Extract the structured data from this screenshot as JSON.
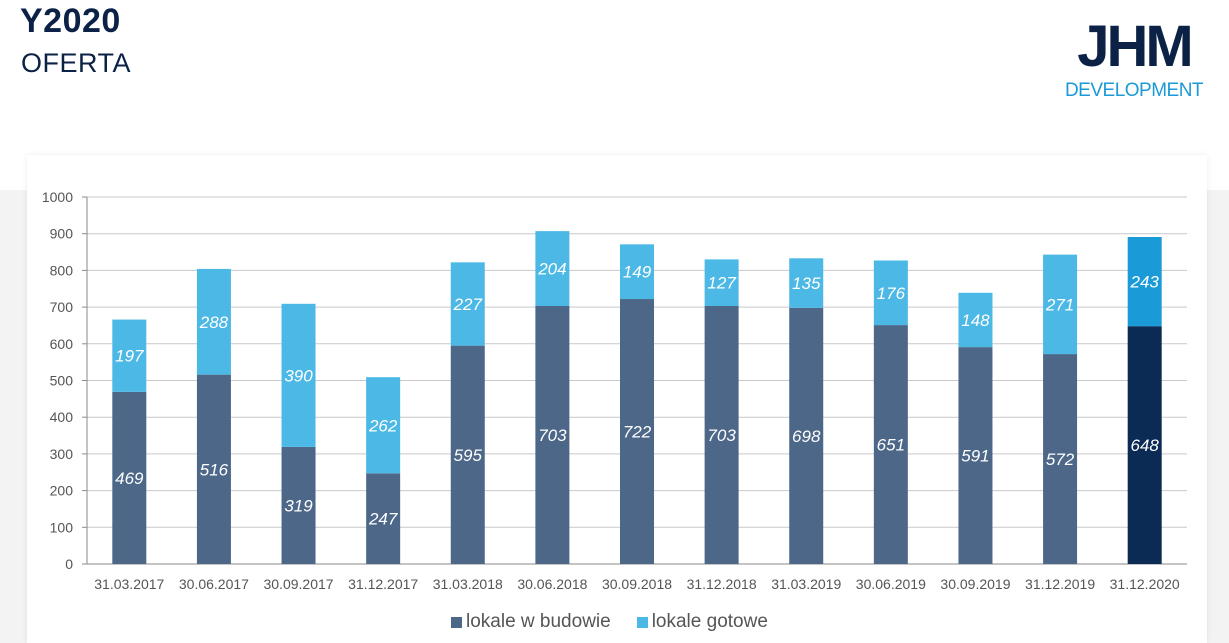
{
  "header": {
    "title": "Y2020",
    "subtitle": "OFERTA"
  },
  "logo": {
    "main": "JHM",
    "sub": "DEVELOPMENT"
  },
  "colors": {
    "in_construction": "#4d6789",
    "ready": "#4cb8e6",
    "highlight_in_construction": "#0b2a54",
    "highlight_ready": "#1a9bd8",
    "brand_dark": "#0b2145",
    "brand_light": "#1b9ad6"
  },
  "chart_data": {
    "type": "bar",
    "stacked": true,
    "title": "",
    "xlabel": "",
    "ylabel": "",
    "ylim": [
      0,
      1000
    ],
    "yticks": [
      0,
      100,
      200,
      300,
      400,
      500,
      600,
      700,
      800,
      900,
      1000
    ],
    "grid": true,
    "legend_position": "bottom",
    "categories": [
      "31.03.2017",
      "30.06.2017",
      "30.09.2017",
      "31.12.2017",
      "31.03.2018",
      "30.06.2018",
      "30.09.2018",
      "31.12.2018",
      "31.03.2019",
      "30.06.2019",
      "30.09.2019",
      "31.12.2019",
      "31.12.2020"
    ],
    "series": [
      {
        "name": "lokale w budowie",
        "values": [
          469,
          516,
          319,
          247,
          595,
          703,
          722,
          703,
          698,
          651,
          591,
          572,
          648
        ]
      },
      {
        "name": "lokale gotowe",
        "values": [
          197,
          288,
          390,
          262,
          227,
          204,
          149,
          127,
          135,
          176,
          148,
          271,
          243
        ]
      }
    ],
    "highlighted_category": "31.12.2020"
  }
}
